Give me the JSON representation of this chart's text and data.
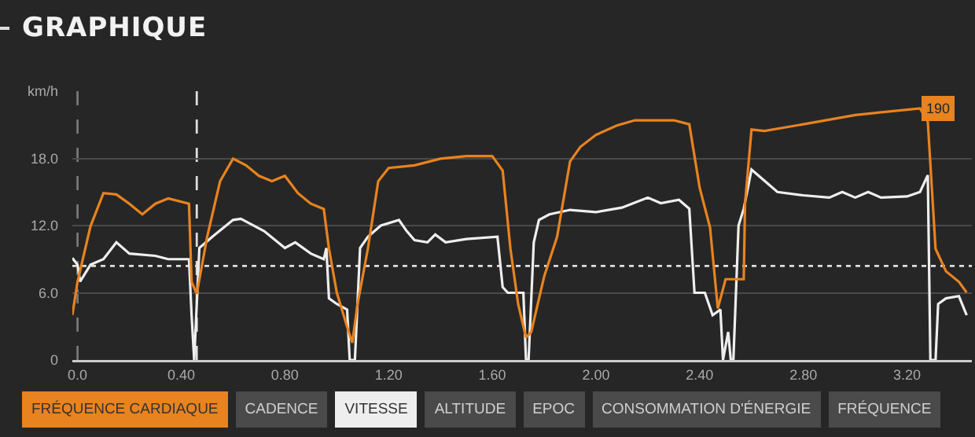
{
  "chart_data": {
    "type": "line",
    "title": "GRAPHIQUE",
    "xlim": [
      -0.02,
      3.45
    ],
    "xticks": [
      {
        "value": 0,
        "label": "0.0"
      },
      {
        "value": 0.4,
        "label": "0.40"
      },
      {
        "value": 0.8,
        "label": "0.80"
      },
      {
        "value": 1.2,
        "label": "1.20"
      },
      {
        "value": 1.6,
        "label": "1.60"
      },
      {
        "value": 2.0,
        "label": "2.00"
      },
      {
        "value": 2.4,
        "label": "2.40"
      },
      {
        "value": 2.8,
        "label": "2.80"
      },
      {
        "value": 3.2,
        "label": "3.20"
      }
    ],
    "ylim": [
      0,
      24
    ],
    "yticks": [
      0,
      {
        "value": 6,
        "label": "6.0"
      },
      {
        "value": 12,
        "label": "12.0"
      },
      {
        "value": 18,
        "label": "18.0"
      },
      {
        "value": 24,
        "label": "km/h"
      }
    ],
    "y2lim": [
      0,
      203
    ],
    "grid": "y",
    "series": [
      {
        "name": "FRÉQUENCE CARDIAQUE",
        "color": "#e8831f",
        "axis": "y2",
        "x": [
          -0.02,
          0.0,
          0.05,
          0.1,
          0.15,
          0.2,
          0.25,
          0.3,
          0.35,
          0.43,
          0.44,
          0.46,
          0.5,
          0.55,
          0.6,
          0.65,
          0.7,
          0.75,
          0.8,
          0.85,
          0.9,
          0.95,
          0.97,
          1.0,
          1.04,
          1.06,
          1.08,
          1.12,
          1.16,
          1.2,
          1.3,
          1.4,
          1.5,
          1.6,
          1.64,
          1.67,
          1.7,
          1.73,
          1.75,
          1.8,
          1.85,
          1.9,
          1.94,
          2.0,
          2.08,
          2.15,
          2.3,
          2.36,
          2.4,
          2.44,
          2.47,
          2.5,
          2.53,
          2.57,
          2.575,
          2.6,
          2.65,
          2.8,
          3.0,
          3.1,
          3.25,
          3.28,
          3.31,
          3.35,
          3.4,
          3.43
        ],
        "values": [
          34,
          59,
          101,
          126,
          125,
          118,
          110,
          118,
          122,
          118,
          59,
          50,
          93,
          135,
          152,
          147,
          139,
          135,
          139,
          126,
          118,
          114,
          84,
          51,
          25,
          13,
          42,
          84,
          135,
          145,
          147,
          152,
          154,
          154,
          143,
          84,
          42,
          17,
          21,
          63,
          93,
          150,
          161,
          170,
          177,
          181,
          181,
          178,
          130,
          100,
          39,
          61,
          61,
          61,
          118,
          174,
          173,
          178,
          185,
          187,
          190,
          180,
          84,
          67,
          59,
          51
        ],
        "value_labels": [
          null,
          null,
          null,
          null,
          null,
          null,
          null,
          null,
          null,
          null,
          null,
          null,
          null,
          null,
          null,
          null,
          null,
          null,
          null,
          null,
          null,
          null,
          null,
          null,
          null,
          null,
          null,
          null,
          null,
          null,
          null,
          null,
          null,
          null,
          null,
          null,
          null,
          null,
          null,
          null,
          null,
          null,
          null,
          null,
          null,
          null,
          null,
          null,
          null,
          null,
          null,
          null,
          null,
          null,
          null,
          null,
          null,
          null,
          null,
          null,
          "190",
          null,
          null,
          null,
          null,
          null
        ]
      },
      {
        "name": "VITESSE",
        "color": "#eeeeee",
        "x": [
          -0.02,
          0.0,
          0.01,
          0.05,
          0.1,
          0.15,
          0.2,
          0.3,
          0.35,
          0.43,
          0.44,
          0.45,
          0.47,
          0.52,
          0.6,
          0.63,
          0.72,
          0.8,
          0.84,
          0.9,
          0.95,
          0.96,
          0.97,
          1.0,
          1.04,
          1.05,
          1.07,
          1.09,
          1.12,
          1.17,
          1.24,
          1.27,
          1.3,
          1.35,
          1.38,
          1.42,
          1.5,
          1.62,
          1.64,
          1.66,
          1.72,
          1.73,
          1.74,
          1.76,
          1.78,
          1.82,
          1.9,
          2.0,
          2.1,
          2.2,
          2.25,
          2.32,
          2.36,
          2.38,
          2.42,
          2.45,
          2.48,
          2.49,
          2.51,
          2.52,
          2.53,
          2.55,
          2.57,
          2.6,
          2.65,
          2.7,
          2.8,
          2.9,
          2.95,
          3.0,
          3.05,
          3.1,
          3.2,
          3.25,
          3.28,
          3.29,
          3.31,
          3.32,
          3.35,
          3.4,
          3.43
        ],
        "values": [
          9.1,
          8.5,
          7.0,
          8.5,
          9.0,
          10.5,
          9.5,
          9.3,
          9.0,
          9.0,
          4.0,
          0,
          10.0,
          11.0,
          12.5,
          12.6,
          11.5,
          10.0,
          10.5,
          9.5,
          9.0,
          10.0,
          5.5,
          5.0,
          4.5,
          0,
          0,
          10.0,
          11.0,
          12.0,
          12.5,
          11.5,
          10.7,
          10.5,
          11.2,
          10.5,
          10.8,
          11.0,
          6.5,
          6.0,
          6.0,
          0,
          0,
          10.5,
          12.5,
          13.0,
          13.4,
          13.2,
          13.6,
          14.5,
          14.0,
          14.3,
          13.5,
          6.0,
          6.0,
          4.0,
          4.5,
          0,
          2.5,
          0,
          0,
          12.0,
          13.5,
          17.0,
          16.0,
          15.0,
          14.7,
          14.5,
          15.0,
          14.5,
          15.0,
          14.5,
          14.6,
          15.0,
          16.5,
          0,
          0,
          5.0,
          5.5,
          5.7,
          4.0
        ]
      }
    ],
    "ref_lines": [
      {
        "axis": "y",
        "value": 8.4,
        "color": "#dddddd",
        "line_style": "dotted"
      },
      {
        "axis": "x",
        "value": 0.0,
        "color": "#777777",
        "line_style": "dashed"
      },
      {
        "axis": "x",
        "value": 0.46,
        "color": "#dddddd",
        "line_style": "dashed"
      }
    ],
    "annotations": [
      "CADENCE",
      "ALTITUDE",
      "EPOC",
      "CONSOMMATION D'ÉNERGIE",
      "FRÉQUENCE"
    ]
  }
}
